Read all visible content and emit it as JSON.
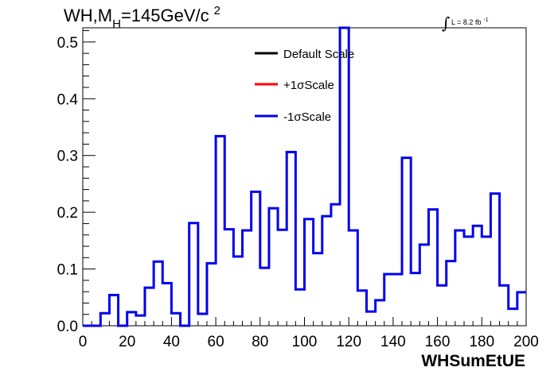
{
  "chart_data": {
    "type": "histogram-step",
    "title": {
      "main": "WH,M",
      "sub": "H",
      "rest": "=145GeV/c",
      "sup": "2"
    },
    "luminosity": {
      "symbol": "∫",
      "text": "L = 8.2 fb",
      "sup": "-1"
    },
    "xlabel": "WHSumEtUE",
    "xlim": [
      0,
      200
    ],
    "ylim": [
      0,
      0.525
    ],
    "x_ticks": [
      "0",
      "20",
      "40",
      "60",
      "80",
      "100",
      "120",
      "140",
      "160",
      "180",
      "200"
    ],
    "y_ticks": [
      "0.0",
      "0.1",
      "0.2",
      "0.3",
      "0.4",
      "0.5"
    ],
    "bin_width": 4,
    "legend": [
      {
        "label": "Default Scale",
        "color": "#000000"
      },
      {
        "label": "+1σScale",
        "color": "#ff0000"
      },
      {
        "label": "-1σScale",
        "color": "#0000ee"
      }
    ],
    "series": [
      {
        "name": "-1σScale",
        "color": "#0000ee",
        "values": [
          0.0,
          0.0,
          0.022,
          0.054,
          0.0,
          0.024,
          0.018,
          0.067,
          0.113,
          0.075,
          0.022,
          0.0,
          0.181,
          0.021,
          0.11,
          0.334,
          0.17,
          0.122,
          0.168,
          0.236,
          0.102,
          0.207,
          0.169,
          0.306,
          0.064,
          0.188,
          0.128,
          0.193,
          0.214,
          0.525,
          0.168,
          0.062,
          0.025,
          0.045,
          0.091,
          0.091,
          0.296,
          0.093,
          0.143,
          0.205,
          0.071,
          0.114,
          0.168,
          0.157,
          0.176,
          0.157,
          0.233,
          0.071,
          0.03,
          0.059
        ]
      }
    ]
  }
}
